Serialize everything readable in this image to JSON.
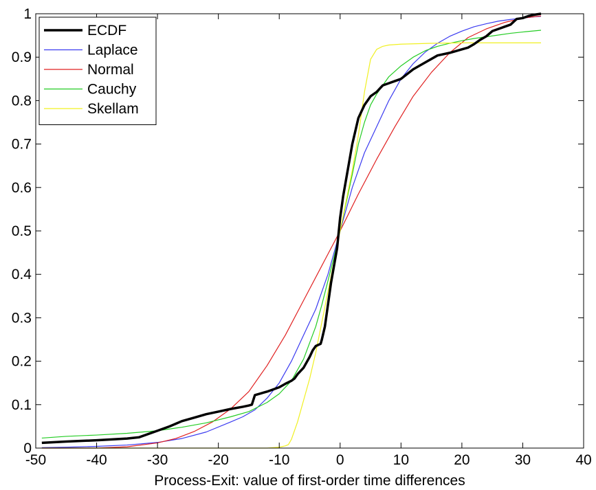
{
  "chart_data": {
    "type": "line",
    "title": "",
    "xlabel": "Process-Exit: value of first-order time differences",
    "ylabel": "",
    "xlim": [
      -50,
      40
    ],
    "ylim": [
      0,
      1
    ],
    "xticks": [
      -50,
      -40,
      -30,
      -20,
      -10,
      0,
      10,
      20,
      30,
      40
    ],
    "yticks": [
      0,
      0.1,
      0.2,
      0.3,
      0.4,
      0.5,
      0.6,
      0.7,
      0.8,
      0.9,
      1
    ],
    "xtick_labels": [
      "-50",
      "-40",
      "-30",
      "-20",
      "-10",
      "0",
      "10",
      "20",
      "30",
      "40"
    ],
    "ytick_labels": [
      "0",
      "0.1",
      "0.2",
      "0.3",
      "0.4",
      "0.5",
      "0.6",
      "0.7",
      "0.8",
      "0.9",
      "1"
    ],
    "grid": false,
    "legend_position": "top-left",
    "series": [
      {
        "name": "ECDF",
        "color": "#000000",
        "x": [
          -49,
          -45,
          -40,
          -35,
          -33,
          -30,
          -28,
          -26,
          -24,
          -22,
          -20,
          -18,
          -16,
          -15,
          -14.5,
          -14,
          -12,
          -10,
          -9,
          -8,
          -7.5,
          -7,
          -6,
          -5,
          -4.5,
          -4,
          -3.2,
          -3,
          -2.5,
          -2,
          -1.5,
          -1,
          -0.5,
          0,
          0.5,
          1,
          1.5,
          2,
          3,
          4,
          5,
          6,
          7,
          8,
          9,
          10,
          12,
          14,
          16,
          18,
          20,
          21,
          22,
          23,
          24,
          25,
          26,
          27,
          28,
          29,
          30,
          31,
          32,
          33
        ],
        "y": [
          0.012,
          0.015,
          0.018,
          0.022,
          0.025,
          0.04,
          0.05,
          0.062,
          0.07,
          0.078,
          0.084,
          0.09,
          0.095,
          0.098,
          0.1,
          0.122,
          0.13,
          0.14,
          0.148,
          0.155,
          0.16,
          0.17,
          0.185,
          0.21,
          0.225,
          0.235,
          0.24,
          0.25,
          0.28,
          0.33,
          0.38,
          0.42,
          0.46,
          0.53,
          0.58,
          0.62,
          0.66,
          0.7,
          0.76,
          0.79,
          0.81,
          0.82,
          0.835,
          0.84,
          0.845,
          0.85,
          0.872,
          0.888,
          0.904,
          0.91,
          0.918,
          0.922,
          0.93,
          0.94,
          0.948,
          0.96,
          0.965,
          0.97,
          0.975,
          0.988,
          0.99,
          0.995,
          0.998,
          1.0
        ]
      },
      {
        "name": "Laplace",
        "color": "#3a3af0",
        "x": [
          -49,
          -45,
          -40,
          -35,
          -30,
          -26,
          -22,
          -18,
          -16,
          -14,
          -12,
          -10,
          -8,
          -6,
          -4,
          -2,
          0,
          2,
          4,
          6,
          8,
          10,
          12,
          14,
          16,
          18,
          20,
          22,
          24,
          26,
          28,
          30,
          32,
          33
        ],
        "y": [
          0.001,
          0.002,
          0.004,
          0.007,
          0.013,
          0.022,
          0.037,
          0.06,
          0.072,
          0.088,
          0.115,
          0.15,
          0.2,
          0.26,
          0.32,
          0.4,
          0.5,
          0.6,
          0.68,
          0.74,
          0.8,
          0.85,
          0.885,
          0.912,
          0.932,
          0.948,
          0.96,
          0.97,
          0.977,
          0.983,
          0.987,
          0.99,
          0.993,
          0.994
        ]
      },
      {
        "name": "Normal",
        "color": "#e02020",
        "x": [
          -49,
          -40,
          -35,
          -30,
          -27,
          -24,
          -21,
          -18,
          -15,
          -12,
          -9,
          -6,
          -3,
          0,
          3,
          6,
          9,
          12,
          15,
          18,
          21,
          24,
          27,
          30,
          33
        ],
        "y": [
          0.0,
          0.0,
          0.003,
          0.012,
          0.022,
          0.038,
          0.06,
          0.09,
          0.13,
          0.19,
          0.26,
          0.34,
          0.42,
          0.5,
          0.585,
          0.665,
          0.74,
          0.81,
          0.865,
          0.91,
          0.945,
          0.965,
          0.98,
          0.99,
          0.995
        ]
      },
      {
        "name": "Cauchy",
        "color": "#22cc22",
        "x": [
          -49,
          -45,
          -40,
          -35,
          -30,
          -26,
          -22,
          -18,
          -15,
          -12,
          -10,
          -8,
          -6,
          -4,
          -3,
          -2,
          -1,
          0,
          1,
          2,
          3,
          4,
          5,
          6,
          8,
          10,
          12,
          14,
          16,
          18,
          20,
          22,
          25,
          28,
          30,
          33
        ],
        "y": [
          0.023,
          0.027,
          0.03,
          0.034,
          0.04,
          0.048,
          0.058,
          0.072,
          0.084,
          0.105,
          0.125,
          0.155,
          0.205,
          0.28,
          0.33,
          0.385,
          0.44,
          0.5,
          0.565,
          0.63,
          0.7,
          0.75,
          0.79,
          0.815,
          0.855,
          0.88,
          0.9,
          0.915,
          0.925,
          0.932,
          0.938,
          0.943,
          0.949,
          0.955,
          0.958,
          0.962
        ]
      },
      {
        "name": "Skellam",
        "color": "#f0f020",
        "x": [
          -49,
          -30,
          -20,
          -12,
          -10,
          -9,
          -8.5,
          -8,
          -7,
          -6,
          -5,
          -4,
          -3,
          -2,
          -1,
          0,
          1,
          2,
          3,
          4,
          5,
          6,
          7,
          8,
          10,
          15,
          20,
          33
        ],
        "y": [
          0.0,
          0.0,
          0.0,
          0.0,
          0.002,
          0.005,
          0.008,
          0.02,
          0.06,
          0.11,
          0.16,
          0.22,
          0.29,
          0.36,
          0.43,
          0.5,
          0.57,
          0.64,
          0.72,
          0.82,
          0.895,
          0.918,
          0.925,
          0.928,
          0.93,
          0.932,
          0.933,
          0.933
        ]
      }
    ]
  }
}
